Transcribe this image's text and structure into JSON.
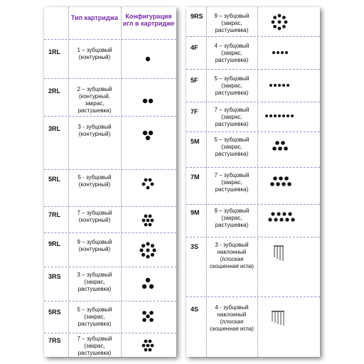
{
  "header": {
    "type_label": "Тип картриджа",
    "config_label": "Конфигурация игл в картридже"
  },
  "left_rows": [
    {
      "code": "1RL",
      "desc": "1 – зубцовый (контурный)",
      "icon": "one-dot-icon"
    },
    {
      "code": "2RL",
      "desc": "2 – зубцовый (контурный, закрас, растушевка)",
      "icon": "two-dots-icon"
    },
    {
      "code": "3RL",
      "desc": "3 - зубцовый (контурный)",
      "icon": "three-dots-icon"
    },
    {
      "code": "5RL",
      "desc": "5 - зубцовый (контурный)",
      "icon": "five-dots-icon"
    },
    {
      "code": "7RL",
      "desc": "7 – зубцовый (контурный)",
      "icon": "seven-dots-icon"
    },
    {
      "code": "9RL",
      "desc": "9 – зубцовый (контурный)",
      "icon": "nine-dots-icon"
    },
    {
      "code": "3RS",
      "desc": "3 – зубцовый (закрас, растушевка)",
      "icon": "three-dots-icon"
    },
    {
      "code": "5RS",
      "desc": "5 – зубцовый (закрас, растушевка)",
      "icon": "five-dots-icon"
    },
    {
      "code": "7RS",
      "desc": "7 – зубцовый (закрас, растушевка)",
      "icon": "seven-dots-icon"
    }
  ],
  "right_rows": [
    {
      "code": "9RS",
      "desc": "9 – зубцовый (закрас, растушевка)",
      "icon": "nine-dots-icon"
    },
    {
      "code": "4F",
      "desc": "4 – зубцовый (закрас, растушевка)",
      "icon": "four-dots-row-icon"
    },
    {
      "code": "5F",
      "desc": "5 – зубцовый (закрас, растушевка)",
      "icon": "five-dots-row-icon"
    },
    {
      "code": "7F",
      "desc": "7 – зубцовый (закрас, растушевка)",
      "icon": "seven-dots-row-icon"
    },
    {
      "code": "5M",
      "desc": "5 – зубцовый (закрас, растушевка)",
      "icon": "five-dots-magnum-icon"
    },
    {
      "code": "7M",
      "desc": "7 – зубцовый (закрас, растушевка)",
      "icon": "seven-dots-magnum-icon"
    },
    {
      "code": "9M",
      "desc": "9 – зубцовый (закрас, растушевка)",
      "icon": "nine-dots-magnum-icon"
    },
    {
      "code": "3S",
      "desc": "3 - зубцовый наклонный (плоская скошенная игла)",
      "icon": "slanted-needles-icon"
    },
    {
      "code": "4S",
      "desc": "4 - зубцовый наклонный (плоская скошенная игла)",
      "icon": "slanted-needles-icon"
    }
  ]
}
